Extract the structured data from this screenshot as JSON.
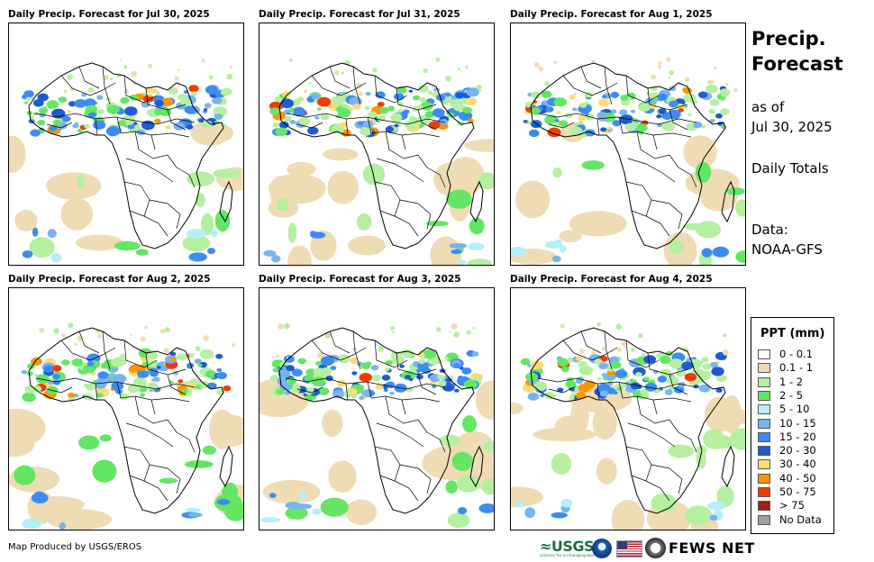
{
  "panels": [
    {
      "title": "Daily Precip. Forecast for Jul 30, 2025",
      "seed": 11
    },
    {
      "title": "Daily Precip. Forecast for Jul 31, 2025",
      "seed": 23
    },
    {
      "title": "Daily Precip. Forecast for Aug 1, 2025",
      "seed": 37
    },
    {
      "title": "Daily Precip. Forecast for Aug 2, 2025",
      "seed": 41
    },
    {
      "title": "Daily Precip. Forecast for Aug 3, 2025",
      "seed": 53
    },
    {
      "title": "Daily Precip. Forecast for Aug 4, 2025",
      "seed": 67
    }
  ],
  "side": {
    "title_line1": "Precip.",
    "title_line2": "Forecast",
    "as_of": "as of",
    "date": "Jul 30, 2025",
    "totals": "Daily Totals",
    "data_label": "Data:",
    "data_source": "NOAA-GFS"
  },
  "legend": {
    "title": "PPT (mm)",
    "items": [
      {
        "label": "0 - 0.1",
        "color": "#ffffff"
      },
      {
        "label": "0.1 - 1",
        "color": "#f0dcb4"
      },
      {
        "label": "1 - 2",
        "color": "#b4f0a0"
      },
      {
        "label": "2 - 5",
        "color": "#64e664"
      },
      {
        "label": "5 - 10",
        "color": "#b4f0fa"
      },
      {
        "label": "10 - 15",
        "color": "#78b4f0"
      },
      {
        "label": "15 - 20",
        "color": "#3c8cf0"
      },
      {
        "label": "20 - 30",
        "color": "#1e5ad2"
      },
      {
        "label": "30 - 40",
        "color": "#fadc78"
      },
      {
        "label": "40 - 50",
        "color": "#fa9600"
      },
      {
        "label": "50 - 75",
        "color": "#f03c00"
      },
      {
        "label": "> 75",
        "color": "#a01e1e"
      },
      {
        "label": "No Data",
        "color": "#a0a0a0"
      }
    ]
  },
  "footer": {
    "credit": "Map Produced by USGS/EROS",
    "usgs": "≈USGS",
    "usgs_tagline": "science for a changing world",
    "fews": "FEWS NET"
  }
}
